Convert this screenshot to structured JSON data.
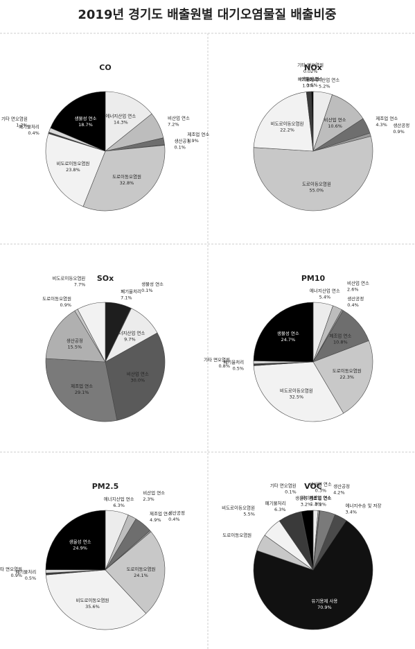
{
  "title": "2019년 경기도 배출원별 대기오염물질 배출비중",
  "chart_data": [
    {
      "type": "pie",
      "title": "CO",
      "categories": [
        "에너지산업 연소",
        "비산업 연소",
        "제조업 연소",
        "생산공정",
        "도로이동오염원",
        "비도로이동오염원",
        "폐기물처리",
        "기타 면오염원",
        "생물성 연소"
      ],
      "values": [
        14.3,
        7.2,
        1.9,
        0.1,
        32.8,
        23.8,
        0.4,
        1.2,
        18.7
      ],
      "value_labels": [
        "14.3%",
        "7.2%",
        "1.9%",
        "0.1%",
        "32.8%",
        "23.8%",
        "0.4%",
        "1.2%",
        "18.7%"
      ],
      "colors": [
        "#ececec",
        "#bdbdbd",
        "#6e6e6e",
        "#9a9a9a",
        "#c8c8c8",
        "#f2f2f2",
        "#3a3a3a",
        "#d8d8d8",
        "#000000"
      ]
    },
    {
      "type": "pie",
      "title": "NOx",
      "categories": [
        "에너지산업 연소",
        "비산업 연소",
        "제조업 연소",
        "생산공정",
        "도로이동오염원",
        "비도로이동오염원",
        "폐기물처리",
        "기타 면오염원",
        "생물성 연소"
      ],
      "values": [
        5.2,
        10.6,
        4.3,
        0.9,
        55.0,
        22.2,
        1.3,
        0.02,
        0.5
      ],
      "value_labels": [
        "5.2%",
        "10.6%",
        "4.3%",
        "0.9%",
        "55.0%",
        "22.2%",
        "1.3%",
        "0.02%",
        "0.5%"
      ],
      "colors": [
        "#ececec",
        "#bdbdbd",
        "#6e6e6e",
        "#9a9a9a",
        "#c8c8c8",
        "#f2f2f2",
        "#3a3a3a",
        "#d8d8d8",
        "#000000"
      ]
    },
    {
      "type": "pie",
      "title": "SOx",
      "categories": [
        "폐기물처리",
        "생물성 연소",
        "에너지산업 연소",
        "비산업 연소",
        "제조업 연소",
        "생산공정",
        "도로이동오염원",
        "비도로이동오염원"
      ],
      "values": [
        7.1,
        0.1,
        9.7,
        30.0,
        29.1,
        15.5,
        0.9,
        7.7
      ],
      "value_labels": [
        "7.1%",
        "0.1%",
        "9.7%",
        "30.0%",
        "29.1%",
        "15.5%",
        "0.9%",
        "7.7%"
      ],
      "colors": [
        "#1e1e1e",
        "#000000",
        "#ececec",
        "#5a5a5a",
        "#7a7a7a",
        "#b0b0b0",
        "#c8c8c8",
        "#f2f2f2"
      ]
    },
    {
      "type": "pie",
      "title": "PM10",
      "categories": [
        "에너지산업 연소",
        "비산업 연소",
        "생산공정",
        "제조업 연소",
        "도로이동오염원",
        "비도로이동오염원",
        "폐기물처리",
        "기타 면오염원",
        "생물성 연소"
      ],
      "values": [
        5.4,
        2.6,
        0.4,
        10.8,
        22.3,
        32.5,
        0.5,
        0.8,
        24.7
      ],
      "value_labels": [
        "5.4%",
        "2.6%",
        "0.4%",
        "10.8%",
        "22.3%",
        "32.5%",
        "0.5%",
        "0.8%",
        "24.7%"
      ],
      "colors": [
        "#ececec",
        "#bdbdbd",
        "#9a9a9a",
        "#6e6e6e",
        "#c8c8c8",
        "#f2f2f2",
        "#3a3a3a",
        "#d8d8d8",
        "#000000"
      ]
    },
    {
      "type": "pie",
      "title": "PM2.5",
      "categories": [
        "에너지산업 연소",
        "비산업 연소",
        "제조업 연소",
        "생산공정",
        "도로이동오염원",
        "비도로이동오염원",
        "폐기물처리",
        "기타 면오염원",
        "생물성 연소"
      ],
      "values": [
        6.3,
        2.3,
        4.9,
        0.4,
        24.1,
        35.6,
        0.5,
        0.9,
        24.9
      ],
      "value_labels": [
        "6.3%",
        "2.3%",
        "4.9%",
        "0.4%",
        "24.1%",
        "35.6%",
        "0.5%",
        "0.9%",
        "24.9%"
      ],
      "colors": [
        "#ececec",
        "#bdbdbd",
        "#6e6e6e",
        "#9a9a9a",
        "#c8c8c8",
        "#f2f2f2",
        "#3a3a3a",
        "#d8d8d8",
        "#000000"
      ]
    },
    {
      "type": "pie",
      "title": "VOC",
      "categories": [
        "에너지산업 연소",
        "비산업 연소",
        "제조업 연소",
        "생산공정",
        "에너지수송 및 저장",
        "유기용제 사용",
        "도로이동오염원",
        "비도로이동오염원",
        "폐기물처리",
        "기타 면오염원",
        "생물성 연소"
      ],
      "values": [
        1.3,
        0.3,
        0.2,
        4.2,
        3.4,
        70.9,
        4.6,
        5.5,
        6.3,
        0.1,
        3.2
      ],
      "value_labels": [
        "1.3%",
        "0.3%",
        "0.2%",
        "4.2%",
        "3.4%",
        "70.9%",
        null,
        "5.5%",
        "6.3%",
        "0.1%",
        "3.2%"
      ],
      "colors": [
        "#ececec",
        "#bdbdbd",
        "#6e6e6e",
        "#7a7a7a",
        "#4a4a4a",
        "#111111",
        "#c8c8c8",
        "#f2f2f2",
        "#3a3a3a",
        "#d8d8d8",
        "#000000"
      ]
    }
  ]
}
